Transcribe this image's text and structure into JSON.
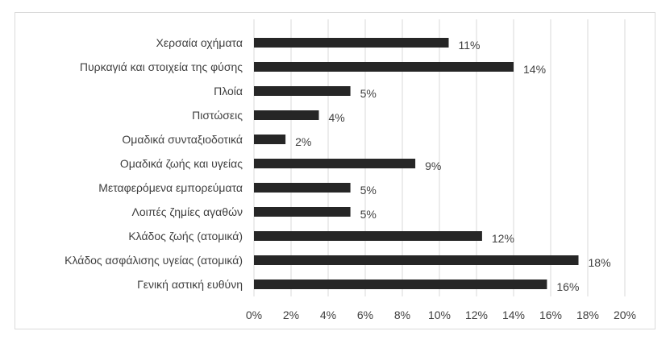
{
  "chart_data": {
    "type": "bar",
    "orientation": "horizontal",
    "categories": [
      "Χερσαία οχήματα",
      "Πυρκαγιά και στοιχεία της φύσης",
      "Πλοία",
      "Πιστώσεις",
      "Ομαδικά συνταξιοδοτικά",
      "Ομαδικά ζωής και υγείας",
      "Μεταφερόμενα εμπορεύματα",
      "Λοιπές ζημίες αγαθών",
      "Κλάδος ζωής (ατομικά)",
      "Κλάδος ασφάλισης υγείας (ατομικά)",
      "Γενική αστική ευθύνη"
    ],
    "values": [
      10.5,
      14.0,
      5.2,
      3.5,
      1.7,
      8.7,
      5.2,
      5.2,
      12.3,
      17.5,
      15.8
    ],
    "data_labels": [
      "11%",
      "14%",
      "5%",
      "4%",
      "2%",
      "9%",
      "5%",
      "5%",
      "12%",
      "18%",
      "16%"
    ],
    "x_ticks": [
      "0%",
      "2%",
      "4%",
      "6%",
      "8%",
      "10%",
      "12%",
      "14%",
      "16%",
      "18%",
      "20%"
    ],
    "xlim": [
      0,
      20
    ],
    "title": "",
    "xlabel": "",
    "ylabel": "",
    "grid": true,
    "legend": "none",
    "bar_color": "#262626",
    "grid_color": "#d9d9d9",
    "text_color": "#404040"
  }
}
